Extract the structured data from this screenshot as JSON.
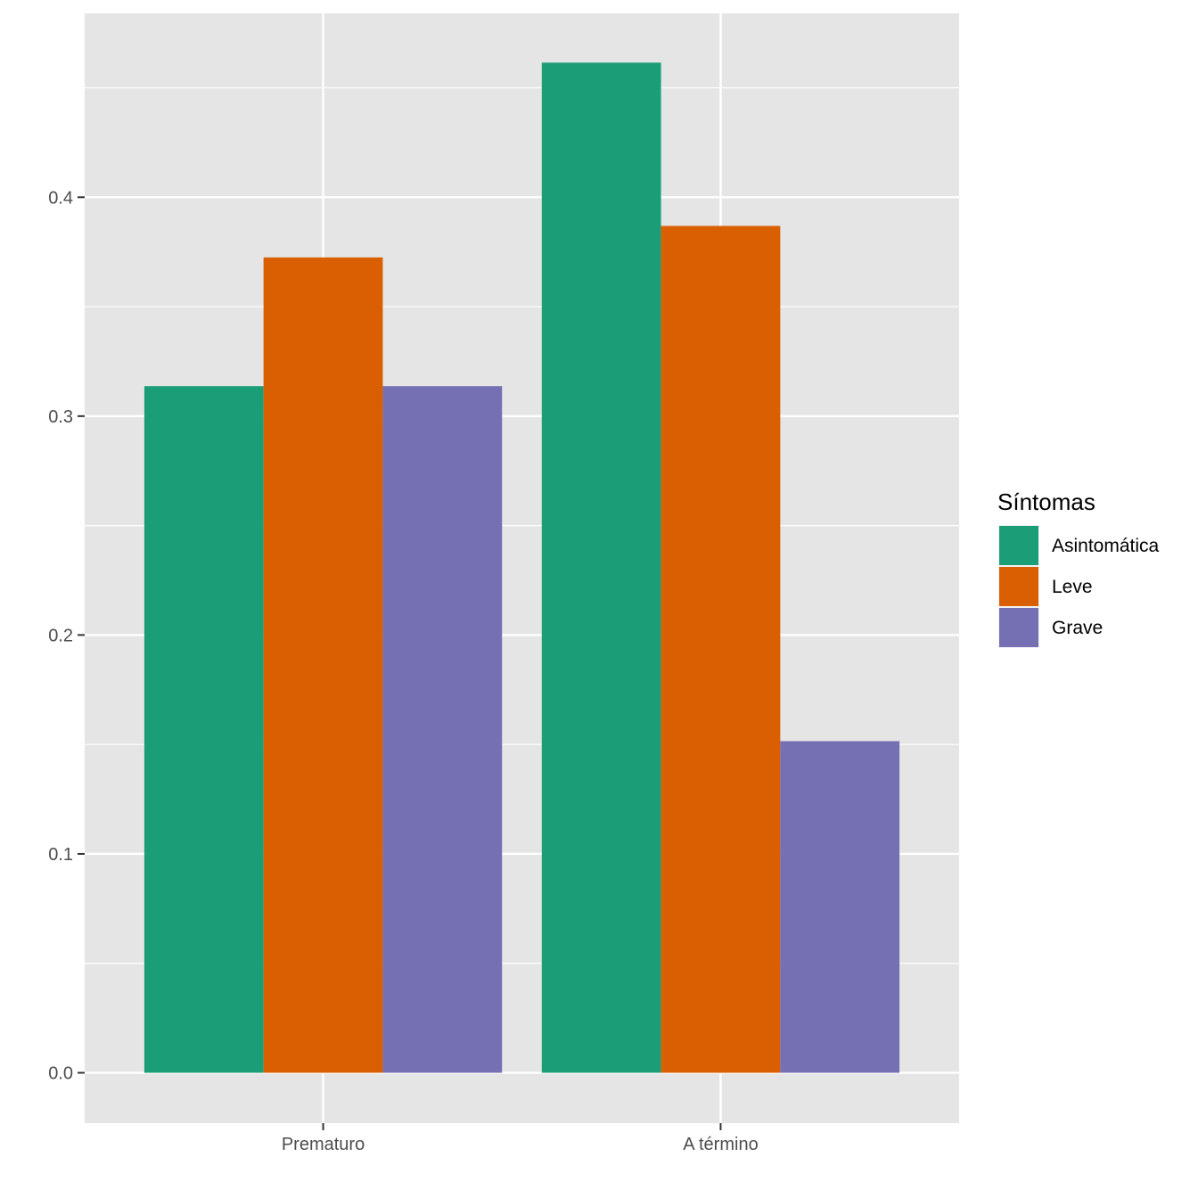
{
  "chart_data": {
    "type": "bar",
    "title": "",
    "xlabel": "",
    "ylabel": "",
    "categories": [
      "Prematuro",
      "A término"
    ],
    "series": [
      {
        "name": "Asintomática",
        "color": "#1b9e77",
        "values": [
          0.3137,
          0.4615
        ]
      },
      {
        "name": "Leve",
        "color": "#d95f02",
        "values": [
          0.3725,
          0.3869
        ]
      },
      {
        "name": "Grave",
        "color": "#7570b3",
        "values": [
          0.3137,
          0.1515
        ]
      }
    ],
    "ylim": [
      -0.023,
      0.484
    ],
    "yticks": [
      "0.0",
      "0.1",
      "0.2",
      "0.3",
      "0.4"
    ],
    "ytick_values": [
      0.0,
      0.1,
      0.2,
      0.3,
      0.4
    ],
    "grid": true,
    "legend": {
      "title": "Síntomas",
      "position": "right"
    },
    "colors": {
      "panel": "#e5e5e5",
      "grid": "#ffffff",
      "tick_text": "#4d4d4d"
    }
  }
}
